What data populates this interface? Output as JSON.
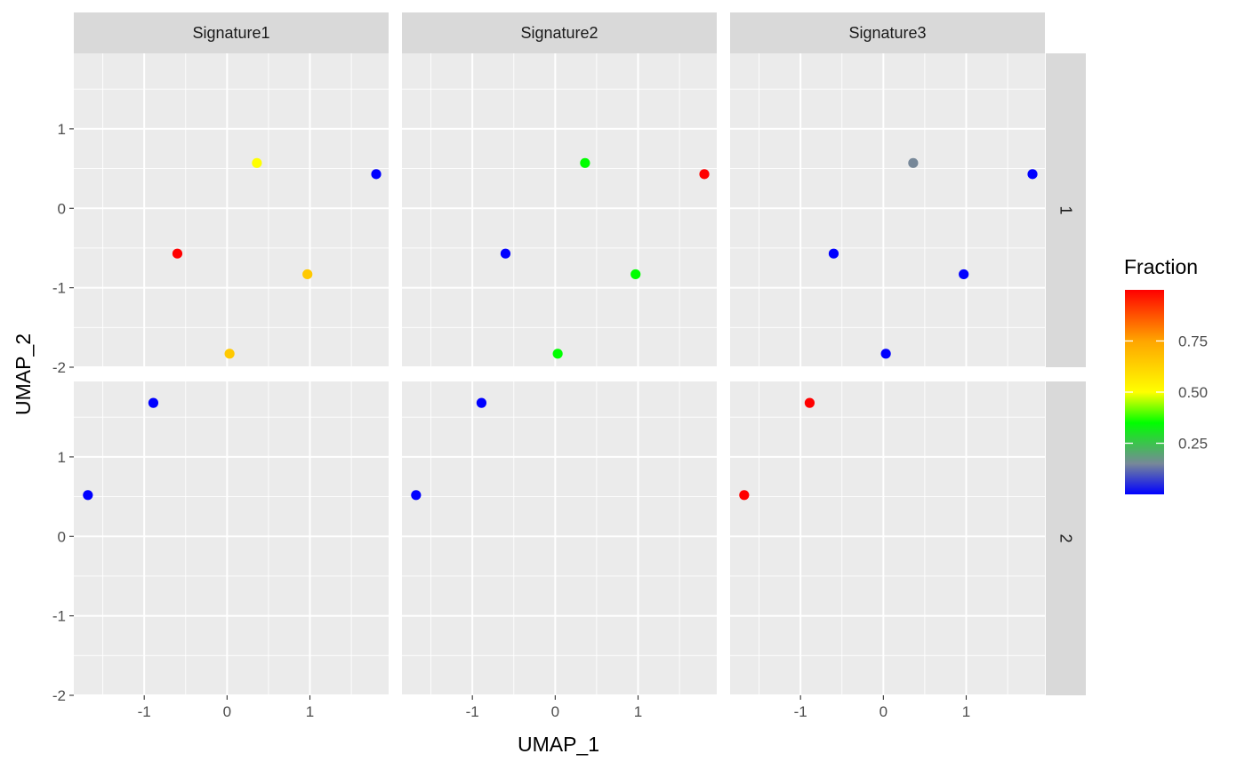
{
  "chart_data": {
    "type": "scatter",
    "title": "",
    "xlabel": "UMAP_1",
    "ylabel": "UMAP_2",
    "xlim": [
      -1.85,
      1.95
    ],
    "ylim": [
      -2.0,
      1.95
    ],
    "x_ticks": [
      -1,
      0,
      1
    ],
    "x_tick_labels": [
      "-1",
      "0",
      "1"
    ],
    "y_ticks": [
      -2,
      -1,
      0,
      1
    ],
    "y_tick_labels": [
      "-2",
      "-1",
      "0",
      "1"
    ],
    "grid": true,
    "facet_columns": [
      "Signature1",
      "Signature2",
      "Signature3"
    ],
    "facet_rows": [
      "1",
      "2"
    ],
    "points": [
      {
        "x": -0.6,
        "y": -0.57,
        "row": 0
      },
      {
        "x": 0.36,
        "y": 0.57,
        "row": 0
      },
      {
        "x": 1.8,
        "y": 0.43,
        "row": 0
      },
      {
        "x": 0.97,
        "y": -0.83,
        "row": 0
      },
      {
        "x": 0.03,
        "y": -1.83,
        "row": 0
      },
      {
        "x": -0.89,
        "y": 1.68,
        "row": 1
      },
      {
        "x": -1.68,
        "y": 0.52,
        "row": 1
      }
    ],
    "fractions": {
      "Signature1": [
        1.0,
        0.5,
        0.0,
        0.65,
        0.65,
        0.0,
        0.0
      ],
      "Signature2": [
        0.0,
        0.35,
        1.0,
        0.35,
        0.35,
        0.0,
        0.0
      ],
      "Signature3": [
        0.0,
        0.15,
        0.0,
        0.0,
        0.0,
        1.0,
        1.0
      ]
    },
    "legend": {
      "title": "Fraction",
      "placement": "right",
      "labels": [
        "0.75",
        "0.50",
        "0.25"
      ],
      "values": [
        0.75,
        0.5,
        0.25
      ],
      "range": [
        0.0,
        1.0
      ],
      "colors": [
        "#0000ff",
        "#778899",
        "#00ff00",
        "#ffff00",
        "#ffa500",
        "#ff0000"
      ],
      "color_stops": [
        0.0,
        0.15,
        0.35,
        0.5,
        0.75,
        1.0
      ]
    },
    "colors": {
      "panel_background": "#ebebeb",
      "grid": "#ffffff",
      "strip_background": "#d9d9d9",
      "strip_text": "#1a1a1a",
      "tick_text": "#4d4d4d"
    }
  }
}
